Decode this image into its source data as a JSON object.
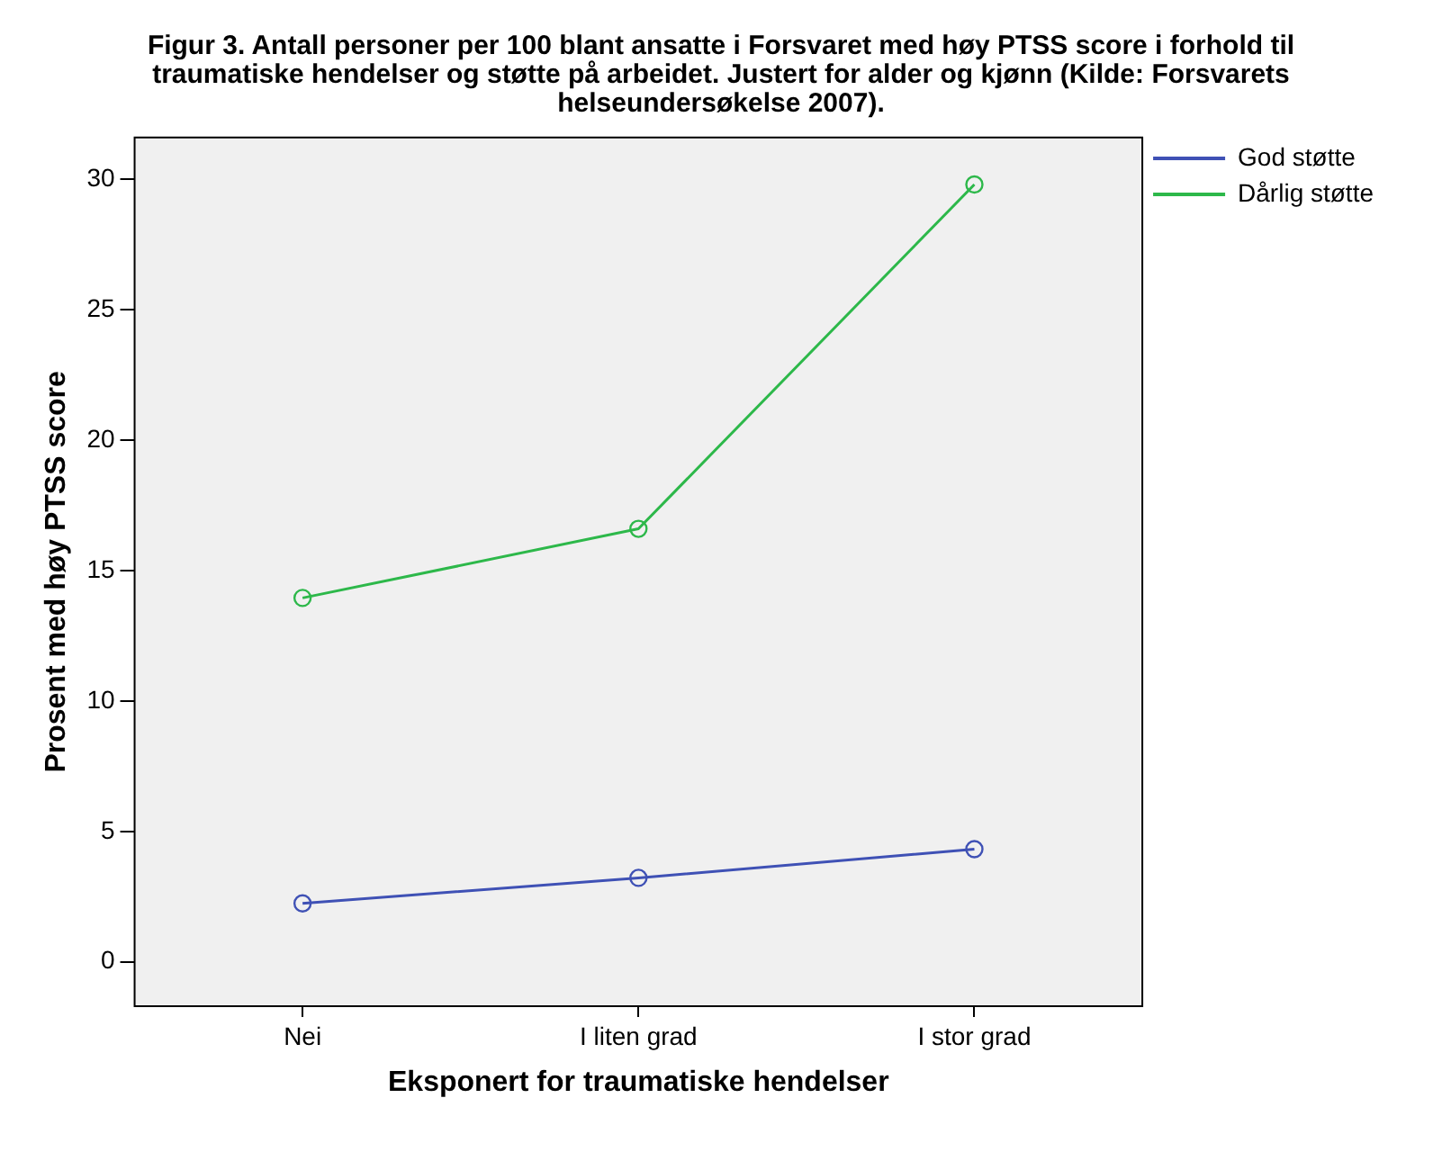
{
  "chart_data": {
    "type": "line",
    "title": "Figur 3. Antall personer per 100 blant ansatte i Forsvaret med høy PTSS score i forhold til traumatiske hendelser og støtte på arbeidet. Justert for alder og kjønn (Kilde: Forsvarets helseundersøkelse 2007).",
    "xlabel": "Eksponert for traumatiske hendelser",
    "ylabel": "Prosent med høy PTSS score",
    "categories": [
      "Nei",
      "I liten grad",
      "I stor grad"
    ],
    "series": [
      {
        "name": "God støtte",
        "color": "#3f51b5",
        "values": [
          2.24,
          3.22,
          4.32
        ]
      },
      {
        "name": "Dårlig støtte",
        "color": "#2db84a",
        "values": [
          13.95,
          16.6,
          29.8
        ]
      }
    ],
    "ylim": [
      -1.7,
      31.6
    ],
    "yticks": [
      0,
      5,
      10,
      15,
      20,
      25,
      30
    ],
    "legend": "right",
    "marker": "circle",
    "line_style": "solid"
  }
}
